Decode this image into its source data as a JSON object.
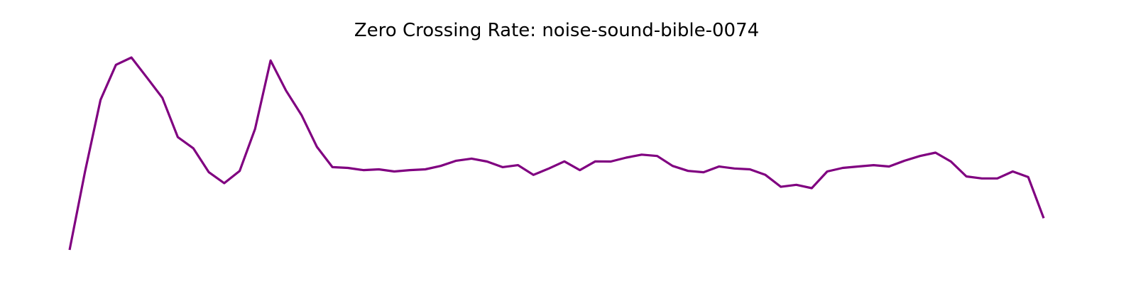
{
  "chart_data": {
    "type": "line",
    "title": "Zero Crossing Rate: noise-sound-bible-0074",
    "xlabel": "",
    "ylabel": "",
    "axes_visible": false,
    "grid": false,
    "legend": "none",
    "color": "#800080",
    "series": [
      {
        "values": [
          0.0,
          0.395,
          0.756,
          0.932,
          0.969,
          0.868,
          0.766,
          0.568,
          0.512,
          0.392,
          0.336,
          0.398,
          0.61,
          0.954,
          0.802,
          0.679,
          0.519,
          0.417,
          0.413,
          0.402,
          0.406,
          0.395,
          0.402,
          0.406,
          0.423,
          0.449,
          0.46,
          0.445,
          0.417,
          0.427,
          0.378,
          0.41,
          0.446,
          0.402,
          0.446,
          0.445,
          0.465,
          0.48,
          0.473,
          0.423,
          0.398,
          0.391,
          0.42,
          0.41,
          0.406,
          0.378,
          0.318,
          0.328,
          0.311,
          0.395,
          0.413,
          0.42,
          0.427,
          0.42,
          0.449,
          0.473,
          0.49,
          0.445,
          0.37,
          0.36,
          0.36,
          0.395,
          0.367,
          0.16
        ]
      }
    ]
  }
}
